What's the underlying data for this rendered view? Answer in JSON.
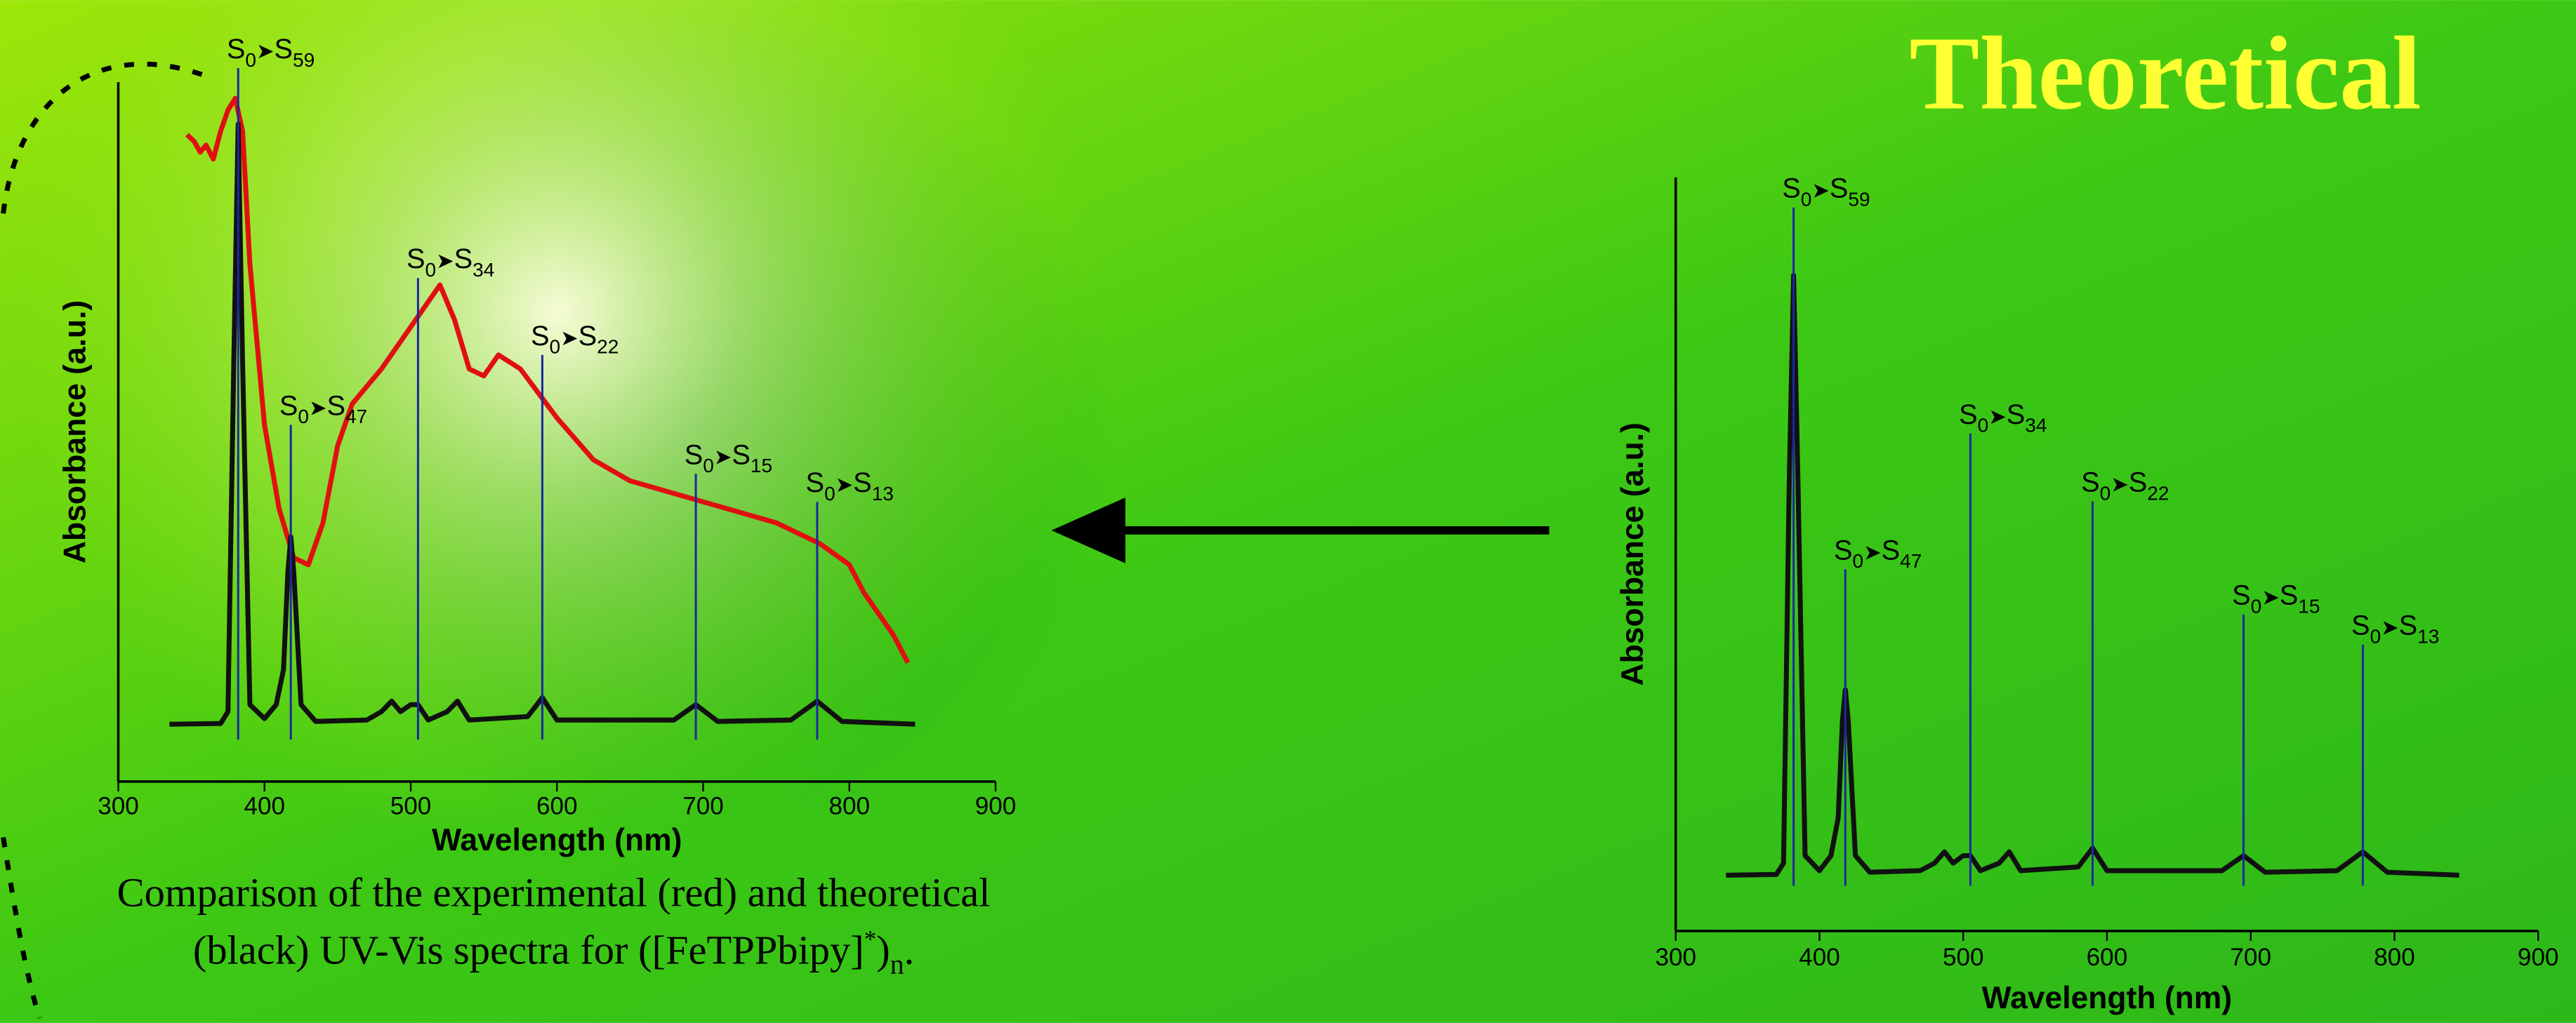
{
  "chart_data": [
    {
      "type": "line",
      "x_label": "Wavelength (nm)",
      "y_label": "Absorbance (a.u.)",
      "caption": {
        "line1": "Comparison of the experimental (red) and theoretical",
        "line2": "(black) UV-Vis spectra for ([FeTPPbipy]",
        "sup": "*",
        "close": ")",
        "sub": "n",
        "end": "."
      },
      "xlim": [
        300,
        900
      ],
      "xticks": [
        300,
        400,
        500,
        600,
        700,
        800,
        900
      ],
      "ylim": [
        0,
        1
      ],
      "series": [
        {
          "color": "#e01010",
          "x": [
            347,
            352,
            356,
            360,
            365,
            370,
            375,
            380,
            385,
            390,
            400,
            410,
            420,
            430,
            440,
            450,
            460,
            480,
            500,
            510,
            520,
            530,
            540,
            550,
            560,
            575,
            600,
            625,
            650,
            700,
            750,
            780,
            800,
            810,
            820,
            830,
            840
          ],
          "values": [
            0.925,
            0.915,
            0.9,
            0.91,
            0.89,
            0.93,
            0.96,
            0.977,
            0.93,
            0.74,
            0.51,
            0.39,
            0.32,
            0.31,
            0.37,
            0.48,
            0.54,
            0.59,
            0.65,
            0.68,
            0.71,
            0.66,
            0.59,
            0.58,
            0.61,
            0.59,
            0.52,
            0.46,
            0.43,
            0.4,
            0.37,
            0.34,
            0.31,
            0.27,
            0.24,
            0.21,
            0.17
          ]
        },
        {
          "color": "#111111",
          "x": [
            335,
            370,
            375,
            379,
            382,
            385,
            390,
            400,
            408,
            413,
            416,
            418,
            420,
            425,
            435,
            470,
            480,
            487,
            493,
            500,
            505,
            512,
            525,
            532,
            540,
            580,
            590,
            600,
            680,
            695,
            710,
            760,
            778,
            795,
            845
          ],
          "values": [
            0.082,
            0.083,
            0.1,
            0.6,
            0.94,
            0.6,
            0.11,
            0.09,
            0.11,
            0.16,
            0.3,
            0.35,
            0.3,
            0.11,
            0.086,
            0.088,
            0.1,
            0.115,
            0.1,
            0.11,
            0.11,
            0.088,
            0.1,
            0.115,
            0.088,
            0.093,
            0.12,
            0.088,
            0.088,
            0.11,
            0.086,
            0.088,
            0.115,
            0.086,
            0.082
          ]
        }
      ],
      "transitions": {
        "symbol": "S",
        "arrow": "➤",
        "ground": "0",
        "base": 0.06,
        "items": [
          {
            "x": 382,
            "top": 1.02,
            "state": "59"
          },
          {
            "x": 418,
            "top": 0.51,
            "state": "47"
          },
          {
            "x": 505,
            "top": 0.72,
            "state": "34"
          },
          {
            "x": 590,
            "top": 0.61,
            "state": "22"
          },
          {
            "x": 695,
            "top": 0.44,
            "state": "15"
          },
          {
            "x": 778,
            "top": 0.4,
            "state": "13"
          }
        ]
      }
    },
    {
      "type": "line",
      "title": "Theoretical",
      "x_label": "Wavelength (nm)",
      "y_label": "Absorbance (a.u.)",
      "xlim": [
        300,
        900
      ],
      "xticks": [
        300,
        400,
        500,
        600,
        700,
        800,
        900
      ],
      "ylim": [
        0,
        1
      ],
      "series": [
        {
          "color": "#111111",
          "x": [
            335,
            370,
            375,
            379,
            382,
            385,
            390,
            400,
            408,
            413,
            416,
            418,
            420,
            425,
            435,
            470,
            480,
            487,
            493,
            500,
            505,
            512,
            525,
            532,
            540,
            580,
            590,
            600,
            680,
            695,
            710,
            760,
            778,
            795,
            845
          ],
          "values": [
            0.074,
            0.075,
            0.09,
            0.6,
            0.87,
            0.6,
            0.1,
            0.08,
            0.1,
            0.15,
            0.28,
            0.32,
            0.28,
            0.1,
            0.078,
            0.08,
            0.09,
            0.105,
            0.09,
            0.1,
            0.1,
            0.08,
            0.09,
            0.105,
            0.08,
            0.085,
            0.11,
            0.08,
            0.08,
            0.1,
            0.078,
            0.08,
            0.105,
            0.078,
            0.074
          ]
        }
      ],
      "transitions": {
        "symbol": "S",
        "arrow": "➤",
        "ground": "0",
        "base": 0.06,
        "items": [
          {
            "x": 382,
            "top": 0.96,
            "state": "59"
          },
          {
            "x": 418,
            "top": 0.48,
            "state": "47"
          },
          {
            "x": 505,
            "top": 0.66,
            "state": "34"
          },
          {
            "x": 590,
            "top": 0.57,
            "state": "22"
          },
          {
            "x": 695,
            "top": 0.42,
            "state": "15"
          },
          {
            "x": 778,
            "top": 0.38,
            "state": "13"
          }
        ]
      }
    }
  ]
}
